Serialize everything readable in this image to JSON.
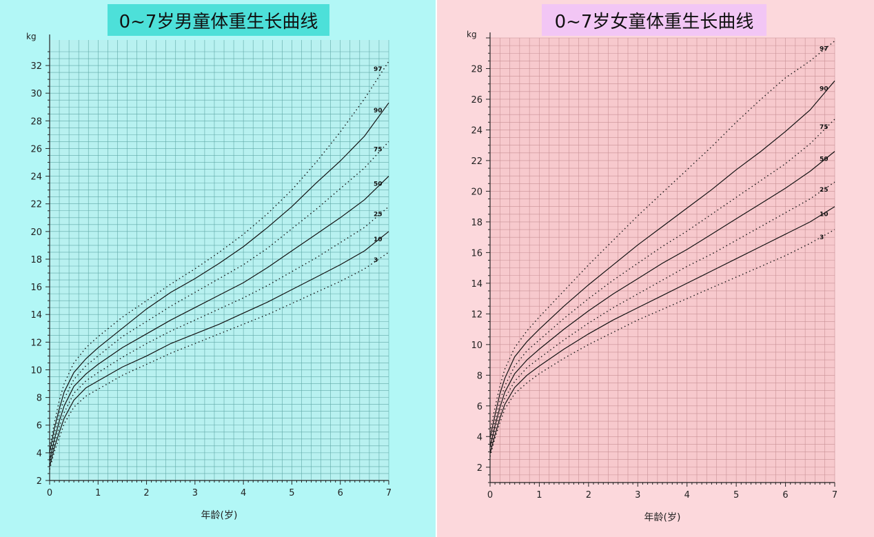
{
  "colors": {
    "boys_background": "#b2f7f6",
    "boys_title_background": "#4de0d9",
    "girls_background": "#fcd8dc",
    "girls_title_background": "#f2c6f5",
    "boys_plot_background": "#b8f1f0",
    "boys_grid": "#5fa8a6",
    "girls_plot_background": "#f7c9cd",
    "girls_grid": "#c89196",
    "curve": "#111111"
  },
  "chart_data": [
    {
      "type": "line",
      "title": "0~7岁男童体重生长曲线",
      "xlabel": "年龄(岁)",
      "ylabel": "kg",
      "xlim": [
        0,
        7
      ],
      "ylim": [
        2,
        33
      ],
      "x_ticks": [
        0,
        1,
        2,
        3,
        4,
        5,
        6,
        7
      ],
      "y_ticks": [
        2,
        4,
        6,
        8,
        10,
        12,
        14,
        16,
        18,
        20,
        22,
        24,
        26,
        28,
        30,
        32
      ],
      "grid": true,
      "x": [
        0,
        0.1,
        0.2,
        0.3,
        0.5,
        0.75,
        1,
        1.5,
        2,
        2.5,
        3,
        3.5,
        4,
        4.5,
        5,
        5.5,
        6,
        6.5,
        7
      ],
      "series": [
        {
          "name": "97",
          "style": "dotted",
          "values": [
            4.4,
            6.2,
            7.8,
            9.0,
            10.5,
            11.6,
            12.4,
            13.8,
            15.0,
            16.2,
            17.3,
            18.5,
            19.8,
            21.3,
            23.0,
            25.0,
            27.2,
            29.6,
            32.3
          ]
        },
        {
          "name": "90",
          "style": "solid",
          "values": [
            4.0,
            5.8,
            7.2,
            8.4,
            9.8,
            10.8,
            11.6,
            13.0,
            14.4,
            15.6,
            16.6,
            17.7,
            18.9,
            20.3,
            21.8,
            23.5,
            25.1,
            26.9,
            29.3
          ]
        },
        {
          "name": "75",
          "style": "dotted",
          "values": [
            3.7,
            5.4,
            6.8,
            7.9,
            9.3,
            10.3,
            11.0,
            12.4,
            13.5,
            14.6,
            15.6,
            16.6,
            17.6,
            18.8,
            20.2,
            21.6,
            23.1,
            24.6,
            26.5
          ]
        },
        {
          "name": "50",
          "style": "solid",
          "values": [
            3.4,
            5.0,
            6.3,
            7.4,
            8.8,
            9.7,
            10.4,
            11.6,
            12.6,
            13.6,
            14.5,
            15.4,
            16.3,
            17.4,
            18.6,
            19.8,
            21.0,
            22.3,
            24.0
          ]
        },
        {
          "name": "25",
          "style": "dotted",
          "values": [
            3.2,
            4.7,
            5.9,
            6.9,
            8.3,
            9.2,
            9.8,
            10.9,
            11.9,
            12.8,
            13.6,
            14.4,
            15.2,
            16.1,
            17.1,
            18.1,
            19.2,
            20.3,
            21.8
          ]
        },
        {
          "name": "10",
          "style": "solid",
          "values": [
            3.0,
            4.4,
            5.5,
            6.5,
            7.8,
            8.7,
            9.2,
            10.2,
            11.0,
            11.9,
            12.6,
            13.3,
            14.1,
            14.9,
            15.8,
            16.7,
            17.6,
            18.6,
            20.0
          ]
        },
        {
          "name": "3",
          "style": "dotted",
          "values": [
            2.8,
            4.1,
            5.1,
            6.1,
            7.3,
            8.1,
            8.6,
            9.6,
            10.4,
            11.2,
            11.9,
            12.6,
            13.3,
            14.0,
            14.8,
            15.6,
            16.4,
            17.3,
            18.5
          ]
        }
      ]
    },
    {
      "type": "line",
      "title": "0~7岁女童体重生长曲线",
      "xlabel": "年龄(岁)",
      "ylabel": "kg",
      "xlim": [
        0,
        7
      ],
      "ylim": [
        1,
        30
      ],
      "x_ticks": [
        0,
        1,
        2,
        3,
        4,
        5,
        6,
        7
      ],
      "y_ticks": [
        2,
        4,
        6,
        8,
        10,
        12,
        14,
        16,
        18,
        20,
        22,
        24,
        26,
        28
      ],
      "grid": true,
      "x": [
        0,
        0.1,
        0.2,
        0.3,
        0.5,
        0.75,
        1,
        1.5,
        2,
        2.5,
        3,
        3.5,
        4,
        4.5,
        5,
        5.5,
        6,
        6.5,
        7
      ],
      "series": [
        {
          "name": "97",
          "style": "dotted",
          "values": [
            4.3,
            5.9,
            7.3,
            8.4,
            9.8,
            10.9,
            11.8,
            13.5,
            15.2,
            16.8,
            18.4,
            19.9,
            21.4,
            22.9,
            24.5,
            26.0,
            27.4,
            28.5,
            29.8
          ]
        },
        {
          "name": "90",
          "style": "solid",
          "values": [
            3.9,
            5.4,
            6.8,
            7.8,
            9.2,
            10.2,
            11.0,
            12.5,
            13.9,
            15.2,
            16.5,
            17.7,
            18.9,
            20.1,
            21.4,
            22.6,
            23.9,
            25.3,
            27.2
          ]
        },
        {
          "name": "75",
          "style": "dotted",
          "values": [
            3.6,
            5.0,
            6.3,
            7.3,
            8.6,
            9.6,
            10.3,
            11.7,
            13.0,
            14.2,
            15.3,
            16.4,
            17.4,
            18.5,
            19.6,
            20.7,
            21.8,
            23.1,
            24.7
          ]
        },
        {
          "name": "50",
          "style": "solid",
          "values": [
            3.3,
            4.7,
            5.9,
            6.9,
            8.1,
            9.0,
            9.7,
            11.0,
            12.2,
            13.3,
            14.3,
            15.3,
            16.2,
            17.2,
            18.2,
            19.2,
            20.2,
            21.3,
            22.6
          ]
        },
        {
          "name": "25",
          "style": "dotted",
          "values": [
            3.1,
            4.4,
            5.5,
            6.5,
            7.6,
            8.5,
            9.1,
            10.3,
            11.4,
            12.4,
            13.3,
            14.2,
            15.1,
            15.9,
            16.8,
            17.7,
            18.6,
            19.5,
            20.6
          ]
        },
        {
          "name": "10",
          "style": "solid",
          "values": [
            2.9,
            4.1,
            5.2,
            6.1,
            7.2,
            8.0,
            8.6,
            9.7,
            10.7,
            11.6,
            12.4,
            13.2,
            14.0,
            14.8,
            15.6,
            16.4,
            17.2,
            18.0,
            19.0
          ]
        },
        {
          "name": "3",
          "style": "dotted",
          "values": [
            2.7,
            3.9,
            4.9,
            5.8,
            6.8,
            7.5,
            8.1,
            9.1,
            10.0,
            10.8,
            11.6,
            12.3,
            13.0,
            13.7,
            14.4,
            15.1,
            15.8,
            16.6,
            17.5
          ]
        }
      ]
    }
  ]
}
